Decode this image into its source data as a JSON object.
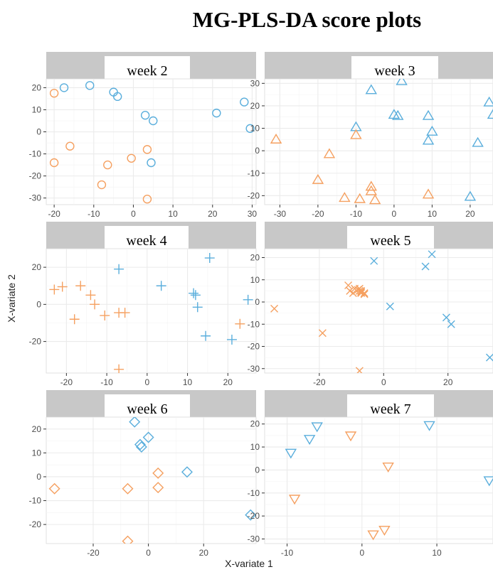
{
  "title": "MG-PLS-DA score plots",
  "axes": {
    "xlabel": "X-variate 1",
    "ylabel": "X-variate 2"
  },
  "colors": {
    "group_a": "#5aaedc",
    "group_b": "#f5a060",
    "strip": "#c8c8c8",
    "grid": "#ebebeb"
  },
  "chart_data": [
    {
      "type": "scatter",
      "title": "week 2",
      "marker": "circle",
      "xlim": [
        -22,
        31
      ],
      "ylim": [
        -33,
        24
      ],
      "xticks": [
        -20,
        -10,
        0,
        10,
        20,
        30
      ],
      "yticks": [
        -30,
        -20,
        -10,
        0,
        10,
        20
      ],
      "series": [
        {
          "color": "#5aaedc",
          "x": [
            -17.5,
            -11,
            -5,
            -4,
            3,
            5,
            21,
            28,
            29.5,
            4.5
          ],
          "y": [
            20,
            21,
            18,
            16,
            7.5,
            5,
            8.5,
            13.5,
            1.5,
            -14
          ]
        },
        {
          "color": "#f5a060",
          "x": [
            -20,
            -16,
            -20,
            -8,
            -6.5,
            -0.5,
            3.5,
            3.5
          ],
          "y": [
            17.5,
            -6.5,
            -14,
            -24,
            -15,
            -12,
            -8,
            -30.5
          ]
        }
      ]
    },
    {
      "type": "scatter",
      "title": "week 3",
      "marker": "triangle-up",
      "xlim": [
        -34,
        26
      ],
      "ylim": [
        -24,
        32
      ],
      "xticks": [
        -30,
        -20,
        -10,
        0,
        10,
        20
      ],
      "yticks": [
        -20,
        -10,
        0,
        10,
        20,
        30
      ],
      "series": [
        {
          "color": "#5aaedc",
          "x": [
            -6,
            2,
            -10,
            0,
            1,
            9,
            10,
            9,
            22,
            25,
            26,
            20
          ],
          "y": [
            27,
            31,
            10.5,
            16,
            15.5,
            15.5,
            8.5,
            4.5,
            3.5,
            21.5,
            16,
            -20.5
          ]
        },
        {
          "color": "#f5a060",
          "x": [
            -31,
            -17,
            -20,
            -10,
            -13,
            -9,
            -6,
            -6,
            -5,
            9
          ],
          "y": [
            5,
            -1.5,
            -13,
            7,
            -21,
            -21.5,
            -16,
            -18,
            -22,
            -19.5
          ]
        }
      ]
    },
    {
      "type": "scatter",
      "title": "week 4",
      "marker": "plus",
      "xlim": [
        -25,
        27
      ],
      "ylim": [
        -37,
        30
      ],
      "xticks": [
        -20,
        -10,
        0,
        10,
        20
      ],
      "yticks": [
        -20,
        0,
        20
      ],
      "series": [
        {
          "color": "#5aaedc",
          "x": [
            -7,
            3.5,
            11.5,
            12,
            12.5,
            15.5,
            14.5,
            21,
            25
          ],
          "y": [
            19,
            10,
            6,
            5,
            -1.5,
            25,
            -17,
            -19,
            2.5
          ]
        },
        {
          "color": "#f5a060",
          "x": [
            -23,
            -21,
            -16.5,
            -14,
            -13,
            -10.5,
            -18,
            -7,
            -5.5,
            -7,
            23
          ],
          "y": [
            8,
            9.5,
            10,
            5,
            0,
            -6,
            -8,
            -4.5,
            -4.5,
            -35,
            -10.5
          ]
        }
      ]
    },
    {
      "type": "scatter",
      "title": "week 5",
      "marker": "cross",
      "xlim": [
        -37,
        34
      ],
      "ylim": [
        -32,
        24
      ],
      "xticks": [
        -20,
        0,
        20
      ],
      "yticks": [
        -30,
        -20,
        -10,
        0,
        10,
        20
      ],
      "series": [
        {
          "color": "#5aaedc",
          "x": [
            -3,
            13,
            15,
            2,
            19.5,
            21,
            33
          ],
          "y": [
            18.5,
            16,
            21.5,
            -2,
            -7,
            -10,
            -25
          ]
        },
        {
          "color": "#f5a060",
          "x": [
            -34,
            -19,
            -11,
            -10.5,
            -9.5,
            -9,
            -8,
            -7.5,
            -7.5,
            -7,
            -6,
            -6,
            -7,
            -7.5,
            -7
          ],
          "y": [
            -3,
            -14,
            7.5,
            5,
            4,
            6,
            5.5,
            6,
            5,
            4,
            3.5,
            4,
            4.5,
            -31,
            5
          ]
        }
      ]
    },
    {
      "type": "scatter",
      "title": "week 6",
      "marker": "diamond",
      "xlim": [
        -37,
        39
      ],
      "ylim": [
        -28,
        25
      ],
      "xticks": [
        -20,
        0,
        20
      ],
      "yticks": [
        -20,
        -10,
        0,
        10,
        20
      ],
      "series": [
        {
          "color": "#5aaedc",
          "x": [
            -5,
            -3,
            -2.5,
            0,
            14,
            37
          ],
          "y": [
            23,
            13.5,
            12.5,
            16.5,
            2,
            -16
          ]
        },
        {
          "color": "#f5a060",
          "x": [
            -34,
            -7.5,
            3.5,
            3.5,
            -7.5
          ],
          "y": [
            -5,
            -5,
            1.5,
            -4.5,
            -27
          ]
        }
      ]
    },
    {
      "type": "scatter",
      "title": "week 7",
      "marker": "triangle-down",
      "xlim": [
        -13,
        17.5
      ],
      "ylim": [
        -32,
        23
      ],
      "xticks": [
        -10,
        0,
        10
      ],
      "yticks": [
        -30,
        -20,
        -10,
        0,
        10,
        20
      ],
      "series": [
        {
          "color": "#5aaedc",
          "x": [
            -9.5,
            -7,
            -6,
            9,
            17
          ],
          "y": [
            7.5,
            13.5,
            19,
            19.5,
            -4.5
          ]
        },
        {
          "color": "#f5a060",
          "x": [
            -1.5,
            3.5,
            -9,
            1.5,
            3
          ],
          "y": [
            15,
            1.5,
            -12.5,
            -28,
            -26
          ]
        }
      ]
    }
  ]
}
